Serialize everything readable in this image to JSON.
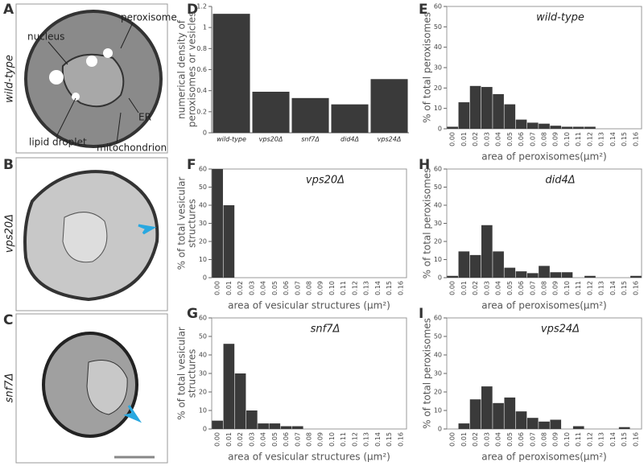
{
  "micrographs": [
    {
      "label": "A",
      "strain": "wild-type",
      "annotations": [
        "nucleus",
        "peroxisome",
        "ER",
        "lipid droplet",
        "mitochondrion"
      ]
    },
    {
      "label": "B",
      "strain": "vps20Δ"
    },
    {
      "label": "C",
      "strain": "snf7Δ"
    }
  ],
  "chart_data": [
    {
      "type": "bar",
      "panel": "D",
      "ylabel": [
        "numerical density of",
        "peroxisomes or vesicles"
      ],
      "categories": [
        "wild-type",
        "vps20Δ",
        "snf7Δ",
        "did4Δ",
        "vps24Δ"
      ],
      "values": [
        1.13,
        0.39,
        0.33,
        0.27,
        0.51
      ],
      "color": "#3a3a3a",
      "ylim": [
        0,
        1.2
      ],
      "yticks": [
        0,
        0.2,
        0.4,
        0.6,
        0.8,
        1,
        1.2
      ]
    },
    {
      "type": "histogram",
      "panel": "E",
      "title": "wild-type",
      "ylabel": [
        "% of total peroxisomes"
      ],
      "xlabel": "area of peroxisomes(μm²)",
      "categories": [
        "0.00",
        "0.01",
        "0.02",
        "0.03",
        "0.04",
        "0.05",
        "0.06",
        "0.07",
        "0.08",
        "0.09",
        "0.10",
        "0.11",
        "0.12",
        "0.13",
        "0.14",
        "0.15",
        "0.16"
      ],
      "values": [
        1,
        13,
        21,
        20.5,
        17,
        12,
        4.5,
        3,
        2.5,
        1.5,
        1,
        1,
        1,
        0,
        0,
        0,
        0
      ],
      "color": "#3a3a3a",
      "ylim": [
        0,
        60
      ],
      "yticks": [
        0,
        10,
        20,
        30,
        40,
        50,
        60
      ]
    },
    {
      "type": "histogram",
      "panel": "F",
      "title": "vps20Δ",
      "ylabel": [
        "% of total vesicular",
        "structures"
      ],
      "xlabel": "area of vesicular structures (μm²)",
      "categories": [
        "0.00",
        "0.01",
        "0.02",
        "0.03",
        "0.04",
        "0.05",
        "0.06",
        "0.07",
        "0.08",
        "0.09",
        "0.10",
        "0.11",
        "0.12",
        "0.13",
        "0.14",
        "0.15",
        "0.16"
      ],
      "values": [
        60,
        40,
        0,
        0,
        0,
        0,
        0,
        0,
        0,
        0,
        0,
        0,
        0,
        0,
        0,
        0,
        0
      ],
      "color": "#3a3a3a",
      "ylim": [
        0,
        60
      ],
      "yticks": [
        0,
        10,
        20,
        30,
        40,
        50,
        60
      ]
    },
    {
      "type": "histogram",
      "panel": "H",
      "title": "did4Δ",
      "ylabel": [
        "% of total peroxisomes"
      ],
      "xlabel": "area of peroxisomes(μm²)",
      "categories": [
        "0.00",
        "0.01",
        "0.02",
        "0.03",
        "0.04",
        "0.05",
        "0.06",
        "0.07",
        "0.08",
        "0.09",
        "0.10",
        "0.11",
        "0.12",
        "0.13",
        "0.14",
        "0.15",
        "0.16"
      ],
      "values": [
        1,
        14.5,
        12.5,
        29,
        14.5,
        5.5,
        3.5,
        2.5,
        6.5,
        3,
        3,
        0,
        1,
        0,
        0,
        0,
        1
      ],
      "color": "#3a3a3a",
      "ylim": [
        0,
        60
      ],
      "yticks": [
        0,
        10,
        20,
        30,
        40,
        50,
        60
      ]
    },
    {
      "type": "histogram",
      "panel": "G",
      "title": "snf7Δ",
      "ylabel": [
        "% of total vesicular",
        "structures"
      ],
      "xlabel": "area of vesicular structures (μm²)",
      "categories": [
        "0.00",
        "0.01",
        "0.02",
        "0.03",
        "0.04",
        "0.05",
        "0.06",
        "0.07",
        "0.08",
        "0.09",
        "0.10",
        "0.11",
        "0.12",
        "0.13",
        "0.14",
        "0.15",
        "0.16"
      ],
      "values": [
        4.5,
        46,
        30,
        10,
        3,
        3,
        1.5,
        1.5,
        0,
        0,
        0,
        0,
        0,
        0,
        0,
        0,
        0
      ],
      "color": "#3a3a3a",
      "ylim": [
        0,
        60
      ],
      "yticks": [
        0,
        10,
        20,
        30,
        40,
        50,
        60
      ]
    },
    {
      "type": "histogram",
      "panel": "I",
      "title": "vps24Δ",
      "ylabel": [
        "% of total peroxisomes"
      ],
      "xlabel": "area of peroxisomes(μm²)",
      "categories": [
        "0.00",
        "0.01",
        "0.02",
        "0.03",
        "0.04",
        "0.05",
        "0.06",
        "0.07",
        "0.08",
        "0.09",
        "0.10",
        "0.11",
        "0.12",
        "0.13",
        "0.14",
        "0.15",
        "0.16"
      ],
      "values": [
        0,
        3,
        16,
        23,
        14,
        17,
        9.5,
        6,
        4,
        5,
        0,
        1.5,
        0,
        0,
        0,
        1,
        0
      ],
      "color": "#3a3a3a",
      "ylim": [
        0,
        60
      ],
      "yticks": [
        0,
        10,
        20,
        30,
        40,
        50,
        60
      ]
    }
  ]
}
